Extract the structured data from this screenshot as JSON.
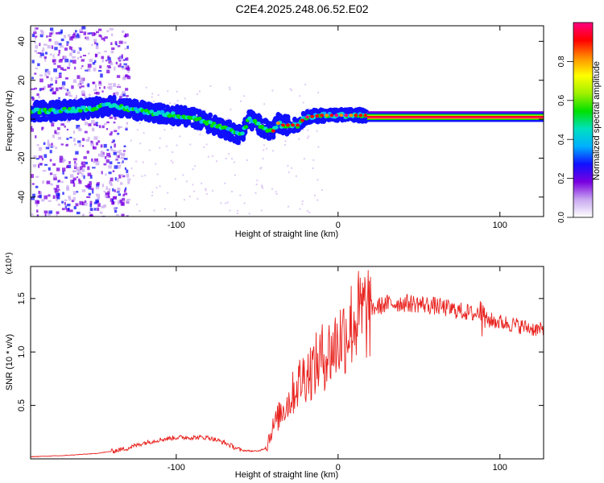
{
  "title": "C2E4.2025.248.06.52.E02",
  "colors": {
    "snr_line": "#e8231f",
    "axis": "#000000"
  },
  "chart_data": [
    {
      "type": "heatmap",
      "id": "spectrogram",
      "xlabel": "Height of straight line (km)",
      "ylabel": "Frequency (Hz)",
      "xlim": [
        -190,
        127
      ],
      "ylim": [
        -50,
        48
      ],
      "xticks": [
        -100,
        0,
        100
      ],
      "xtick_labels": [
        "-100",
        "0",
        "100"
      ],
      "yticks": [
        -40,
        -20,
        0,
        20,
        40
      ],
      "ytick_labels": [
        "-40",
        "-20",
        "0",
        "20",
        "40"
      ],
      "colorbar": {
        "label": "Normalized spectral amplitude",
        "range": [
          0,
          1
        ],
        "ticks": [
          0.0,
          0.2,
          0.4,
          0.6,
          0.8
        ],
        "tick_labels": [
          "0.0",
          "0.2",
          "0.4",
          "0.6",
          "0.8"
        ],
        "colors": [
          "#ffffff",
          "#c9a9f0",
          "#7a00e0",
          "#1010ff",
          "#00b0ff",
          "#00e0c0",
          "#00e000",
          "#a0f000",
          "#ffff00",
          "#ff9000",
          "#ff0000",
          "#ff0080"
        ]
      },
      "ridge": {
        "x": [
          -190,
          -160,
          -140,
          -120,
          -100,
          -90,
          -80,
          -70,
          -60,
          -55,
          -50,
          -45,
          -40,
          -37,
          -35,
          -30,
          -25,
          -20,
          -10,
          0,
          20,
          127
        ],
        "freq": [
          4,
          5,
          7,
          4,
          2,
          1,
          -2,
          -5,
          -8,
          0,
          -2,
          -5,
          -6,
          -2,
          -3,
          -3,
          -3,
          1,
          2,
          2,
          2,
          2
        ]
      }
    },
    {
      "type": "line",
      "id": "snr",
      "xlabel": "Height of straight line (km)",
      "ylabel": "SNR (10 * v/v)",
      "y_multiplier": "(x10⁴)",
      "xlim": [
        -190,
        127
      ],
      "ylim": [
        0,
        1.8
      ],
      "xticks": [
        -100,
        0,
        100
      ],
      "xtick_labels": [
        "-100",
        "0",
        "100"
      ],
      "yticks": [
        0.5,
        1.0,
        1.5
      ],
      "ytick_labels": [
        "0.5",
        "1.0",
        "1.5"
      ],
      "series": [
        {
          "name": "SNR",
          "x": [
            -190,
            -170,
            -150,
            -140,
            -130,
            -120,
            -110,
            -100,
            -90,
            -80,
            -70,
            -60,
            -50,
            -45,
            -40,
            -35,
            -30,
            -25,
            -20,
            -15,
            -10,
            -5,
            0,
            5,
            10,
            20,
            30,
            40,
            50,
            60,
            70,
            80,
            85,
            88,
            90,
            92,
            100,
            110,
            120,
            127
          ],
          "values": [
            0.02,
            0.03,
            0.05,
            0.07,
            0.1,
            0.15,
            0.18,
            0.2,
            0.2,
            0.2,
            0.15,
            0.08,
            0.07,
            0.1,
            0.3,
            0.45,
            0.55,
            0.7,
            0.8,
            0.85,
            0.95,
            1.0,
            1.1,
            1.2,
            1.3,
            1.4,
            1.45,
            1.46,
            1.45,
            1.43,
            1.4,
            1.37,
            1.35,
            1.4,
            1.3,
            1.3,
            1.28,
            1.25,
            1.22,
            1.2
          ]
        }
      ]
    }
  ]
}
